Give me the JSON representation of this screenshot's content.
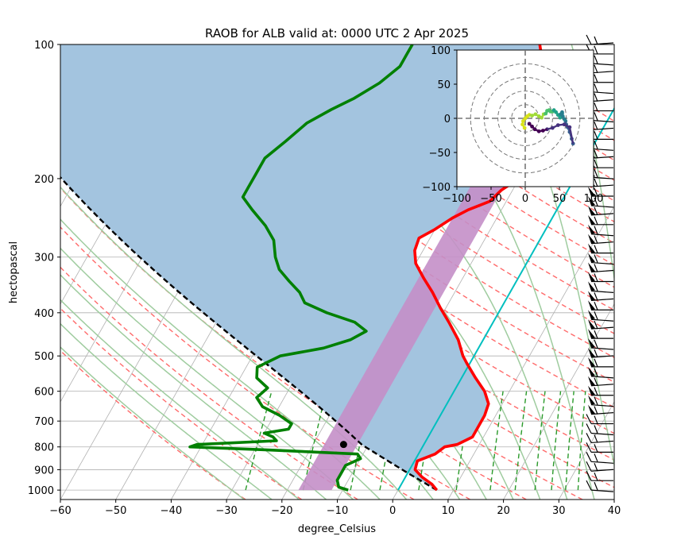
{
  "chart_data": {
    "type": "line",
    "title": "RAOB for ALB valid at: 0000 UTC 2 Apr 2025",
    "xlabel": "degree_Celsius",
    "ylabel": "hectopascal",
    "xlim": [
      -60,
      40
    ],
    "ylim_hpa": [
      1050,
      100
    ],
    "y_scale": "log",
    "grid": true,
    "x_ticks": [
      "−60",
      "−50",
      "−40",
      "−30",
      "−20",
      "−10",
      "0",
      "10",
      "20",
      "30",
      "40"
    ],
    "y_ticks": [
      "100",
      "200",
      "300",
      "400",
      "500",
      "600",
      "700",
      "800",
      "900",
      "1000"
    ],
    "colors": {
      "temperature": "#ff0000",
      "dewpoint": "#008000",
      "parcel": "#000000",
      "lcl": "#000000",
      "cape_shading": "#a3c4df",
      "dgz_shading": "#c48fc8",
      "freezing_line": "#00bfbf",
      "dry_adiabats": "#ff6b6b",
      "moist_adiabats": "#9fcc9f",
      "mixing_ratio": "#2a9a2a",
      "isotherms": "#b0b0b0"
    },
    "temperature": [
      {
        "p": 1000,
        "t": 7
      },
      {
        "p": 970,
        "t": 5.5
      },
      {
        "p": 935,
        "t": 3
      },
      {
        "p": 900,
        "t": 1
      },
      {
        "p": 860,
        "t": 0.5
      },
      {
        "p": 830,
        "t": 3
      },
      {
        "p": 800,
        "t": 4
      },
      {
        "p": 790,
        "t": 6
      },
      {
        "p": 760,
        "t": 8
      },
      {
        "p": 720,
        "t": 8
      },
      {
        "p": 680,
        "t": 8
      },
      {
        "p": 640,
        "t": 7.5
      },
      {
        "p": 600,
        "t": 5.5
      },
      {
        "p": 560,
        "t": 2.5
      },
      {
        "p": 520,
        "t": -0.5
      },
      {
        "p": 500,
        "t": -2
      },
      {
        "p": 460,
        "t": -4.5
      },
      {
        "p": 420,
        "t": -8
      },
      {
        "p": 390,
        "t": -11
      },
      {
        "p": 360,
        "t": -14
      },
      {
        "p": 335,
        "t": -17
      },
      {
        "p": 310,
        "t": -20
      },
      {
        "p": 290,
        "t": -21.5
      },
      {
        "p": 272,
        "t": -22
      },
      {
        "p": 260,
        "t": -20
      },
      {
        "p": 245,
        "t": -18
      },
      {
        "p": 235,
        "t": -16
      },
      {
        "p": 225,
        "t": -13
      },
      {
        "p": 212,
        "t": -12
      },
      {
        "p": 200,
        "t": -10
      },
      {
        "p": 185,
        "t": -9
      },
      {
        "p": 172,
        "t": -8.5
      },
      {
        "p": 160,
        "t": -9
      },
      {
        "p": 148,
        "t": -9
      },
      {
        "p": 138,
        "t": -10
      },
      {
        "p": 128,
        "t": -11
      },
      {
        "p": 118,
        "t": -14
      },
      {
        "p": 110,
        "t": -17
      },
      {
        "p": 104,
        "t": -19
      },
      {
        "p": 100,
        "t": -20
      }
    ],
    "dewpoint": [
      {
        "p": 1000,
        "t": -9
      },
      {
        "p": 985,
        "t": -11
      },
      {
        "p": 950,
        "t": -12
      },
      {
        "p": 915,
        "t": -12
      },
      {
        "p": 880,
        "t": -12
      },
      {
        "p": 850,
        "t": -10
      },
      {
        "p": 830,
        "t": -11
      },
      {
        "p": 812,
        "t": -28
      },
      {
        "p": 800,
        "t": -42
      },
      {
        "p": 790,
        "t": -41
      },
      {
        "p": 775,
        "t": -27
      },
      {
        "p": 760,
        "t": -28
      },
      {
        "p": 745,
        "t": -30
      },
      {
        "p": 730,
        "t": -26
      },
      {
        "p": 710,
        "t": -26
      },
      {
        "p": 680,
        "t": -29
      },
      {
        "p": 650,
        "t": -33
      },
      {
        "p": 620,
        "t": -35
      },
      {
        "p": 590,
        "t": -34
      },
      {
        "p": 560,
        "t": -37
      },
      {
        "p": 530,
        "t": -38
      },
      {
        "p": 500,
        "t": -35
      },
      {
        "p": 480,
        "t": -28
      },
      {
        "p": 460,
        "t": -24
      },
      {
        "p": 440,
        "t": -22
      },
      {
        "p": 420,
        "t": -25
      },
      {
        "p": 400,
        "t": -31
      },
      {
        "p": 380,
        "t": -36
      },
      {
        "p": 360,
        "t": -38
      },
      {
        "p": 340,
        "t": -41
      },
      {
        "p": 320,
        "t": -44
      },
      {
        "p": 300,
        "t": -46
      },
      {
        "p": 275,
        "t": -48
      },
      {
        "p": 255,
        "t": -51
      },
      {
        "p": 235,
        "t": -55
      },
      {
        "p": 220,
        "t": -58
      },
      {
        "p": 210,
        "t": -58
      },
      {
        "p": 195,
        "t": -58
      },
      {
        "p": 180,
        "t": -58
      },
      {
        "p": 165,
        "t": -56
      },
      {
        "p": 150,
        "t": -54
      },
      {
        "p": 140,
        "t": -51
      },
      {
        "p": 132,
        "t": -48
      },
      {
        "p": 122,
        "t": -45
      },
      {
        "p": 112,
        "t": -43
      },
      {
        "p": 105,
        "t": -43
      },
      {
        "p": 100,
        "t": -43
      }
    ],
    "parcel_profile": {
      "surface_p": 1000,
      "surface_t": 7,
      "surface_td": -9
    },
    "lcl": {
      "p": 790,
      "t": -14.5
    },
    "dgz": {
      "t_warm": -12,
      "t_cold": -18
    },
    "freezing_line_t": 0,
    "hodograph": {
      "type": "scatter",
      "xlim": [
        -100,
        100
      ],
      "ylim": [
        -100,
        100
      ],
      "x_ticks": [
        "−100",
        "−50",
        "0",
        "50",
        "100"
      ],
      "y_ticks": [
        "−100",
        "−50",
        "0",
        "50",
        "100"
      ],
      "u": [
        -1,
        -4,
        -3,
        0,
        3,
        6,
        10,
        15,
        20,
        24,
        27,
        30,
        32,
        35,
        37,
        40,
        42,
        45,
        48,
        51,
        53,
        54,
        54,
        52,
        55,
        57,
        59,
        60,
        62,
        65,
        68,
        70,
        65,
        57,
        48,
        40,
        32,
        26,
        20,
        14,
        10,
        6
      ],
      "v": [
        -14,
        -9,
        -4,
        0,
        3,
        5,
        4,
        6,
        3,
        1,
        6,
        7,
        11,
        12,
        10,
        10,
        12,
        9,
        5,
        1,
        4,
        7,
        9,
        6,
        3,
        -1,
        -4,
        -9,
        -13,
        -20,
        -30,
        -37,
        -13,
        -9,
        -10,
        -14,
        -16,
        -18,
        -19,
        -16,
        -12,
        -8
      ]
    },
    "wind_barbs_count": 48
  }
}
